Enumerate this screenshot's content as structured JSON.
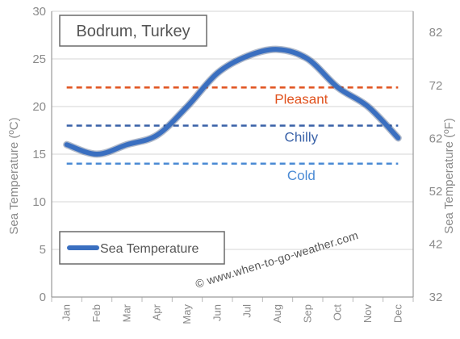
{
  "chart_data": {
    "type": "line",
    "title": "Bodrum, Turkey",
    "categories": [
      "Jan",
      "Feb",
      "Mar",
      "Apr",
      "May",
      "Jun",
      "Jul",
      "Aug",
      "Sep",
      "Oct",
      "Nov",
      "Dec"
    ],
    "series": [
      {
        "name": "Sea Temperature",
        "values": [
          16,
          15,
          16,
          17,
          20,
          23.5,
          25.3,
          26,
          25,
          22,
          20,
          16.7
        ],
        "color": "#3a6fc0"
      }
    ],
    "ylabel_left": "Sea Temperature (ºC)",
    "ylabel_right": "Sea Temperature (ºF)",
    "ylim_left": [
      0,
      30
    ],
    "yticks_left": [
      "0",
      "5",
      "10",
      "15",
      "20",
      "25",
      "30"
    ],
    "ylim_right": [
      32,
      86
    ],
    "yticks_right": [
      {
        "value": 32,
        "label": "32"
      },
      {
        "value": 42,
        "label": "42"
      },
      {
        "value": 52,
        "label": "52"
      },
      {
        "value": 62,
        "label": "62"
      },
      {
        "value": 72,
        "label": "72"
      },
      {
        "value": 82,
        "label": "82"
      }
    ],
    "thresholds": [
      {
        "label": "Pleasant",
        "value": 22,
        "color": "#e0531f"
      },
      {
        "label": "Chilly",
        "value": 18,
        "color": "#3a62a8"
      },
      {
        "label": "Cold",
        "value": 14,
        "color": "#4a8ad4"
      }
    ],
    "grid": true,
    "legend": {
      "label": "Sea Temperature",
      "position": "bottom-left"
    },
    "watermark": "© www.when-to-go-weather.com"
  }
}
